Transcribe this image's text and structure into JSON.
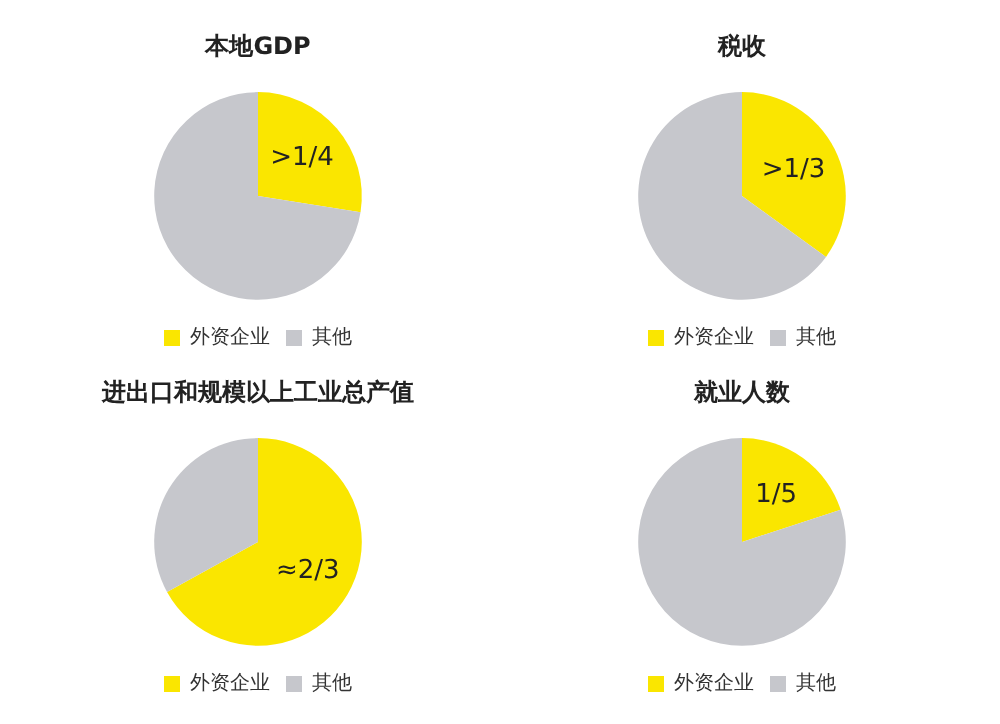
{
  "chart_data": [
    {
      "type": "pie",
      "title": "本地GDP",
      "categories": [
        "外资企业",
        "其他"
      ],
      "values": [
        27.5,
        72.5
      ],
      "colors": [
        "#fae600",
        "#c6c7cc"
      ],
      "annotations": [
        ">1/4"
      ],
      "legend": "bottom"
    },
    {
      "type": "pie",
      "title": "税收",
      "categories": [
        "外资企业",
        "其他"
      ],
      "values": [
        35,
        65
      ],
      "colors": [
        "#fae600",
        "#c6c7cc"
      ],
      "annotations": [
        ">1/3"
      ],
      "legend": "bottom"
    },
    {
      "type": "pie",
      "title": "进出口和规模以上工业总产值",
      "categories": [
        "外资企业",
        "其他"
      ],
      "values": [
        67,
        33
      ],
      "colors": [
        "#fae600",
        "#c6c7cc"
      ],
      "annotations": [
        "≈2/3"
      ],
      "legend": "bottom"
    },
    {
      "type": "pie",
      "title": "就业人数",
      "categories": [
        "外资企业",
        "其他"
      ],
      "values": [
        20,
        80
      ],
      "colors": [
        "#fae600",
        "#c6c7cc"
      ],
      "annotations": [
        "1/5"
      ],
      "legend": "bottom"
    }
  ]
}
